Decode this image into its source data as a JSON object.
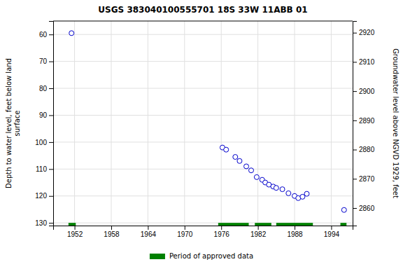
{
  "chart_data": {
    "type": "scatter",
    "title": "USGS 383040100555701 18S 33W 11ABB 01",
    "y_label": "Depth to water level, feet below land\nsurface",
    "y2_label": "Groundwater level above NGVD 1929, feet",
    "xlim": [
      1948.5,
      1997.5
    ],
    "xticks": [
      1952,
      1958,
      1964,
      1970,
      1976,
      1982,
      1988,
      1994
    ],
    "ylim": [
      131,
      55
    ],
    "yticks": [
      60,
      70,
      80,
      90,
      100,
      110,
      120,
      130
    ],
    "y2lim": [
      2854,
      2924
    ],
    "y2ticks": [
      2860,
      2870,
      2880,
      2890,
      2900,
      2910,
      2920
    ],
    "grid": true,
    "legend": "bottom",
    "x": [
      1951.5,
      1976.2,
      1976.8,
      1978.3,
      1979.0,
      1980.1,
      1980.9,
      1981.8,
      1982.7,
      1983.2,
      1983.8,
      1984.5,
      1985.0,
      1986.0,
      1987.0,
      1988.0,
      1988.6,
      1989.3,
      1990.0,
      1996.1
    ],
    "series": [
      {
        "color": "#0000cc",
        "marker": "open-circle",
        "values": [
          59.5,
          102.0,
          102.8,
          105.5,
          107.0,
          109.0,
          110.5,
          113.0,
          114.0,
          115.0,
          115.8,
          116.5,
          117.0,
          117.5,
          119.0,
          120.0,
          120.8,
          120.3,
          119.2,
          125.2
        ]
      }
    ],
    "periods": {
      "name": "Period of approved data",
      "color": "#008000",
      "x_ranges": [
        [
          1951.0,
          1952.2
        ],
        [
          1975.5,
          1980.5
        ],
        [
          1981.5,
          1984.2
        ],
        [
          1985.0,
          1991.0
        ],
        [
          1995.5,
          1996.5
        ]
      ],
      "y_range": [
        130.0,
        131.2
      ]
    }
  }
}
